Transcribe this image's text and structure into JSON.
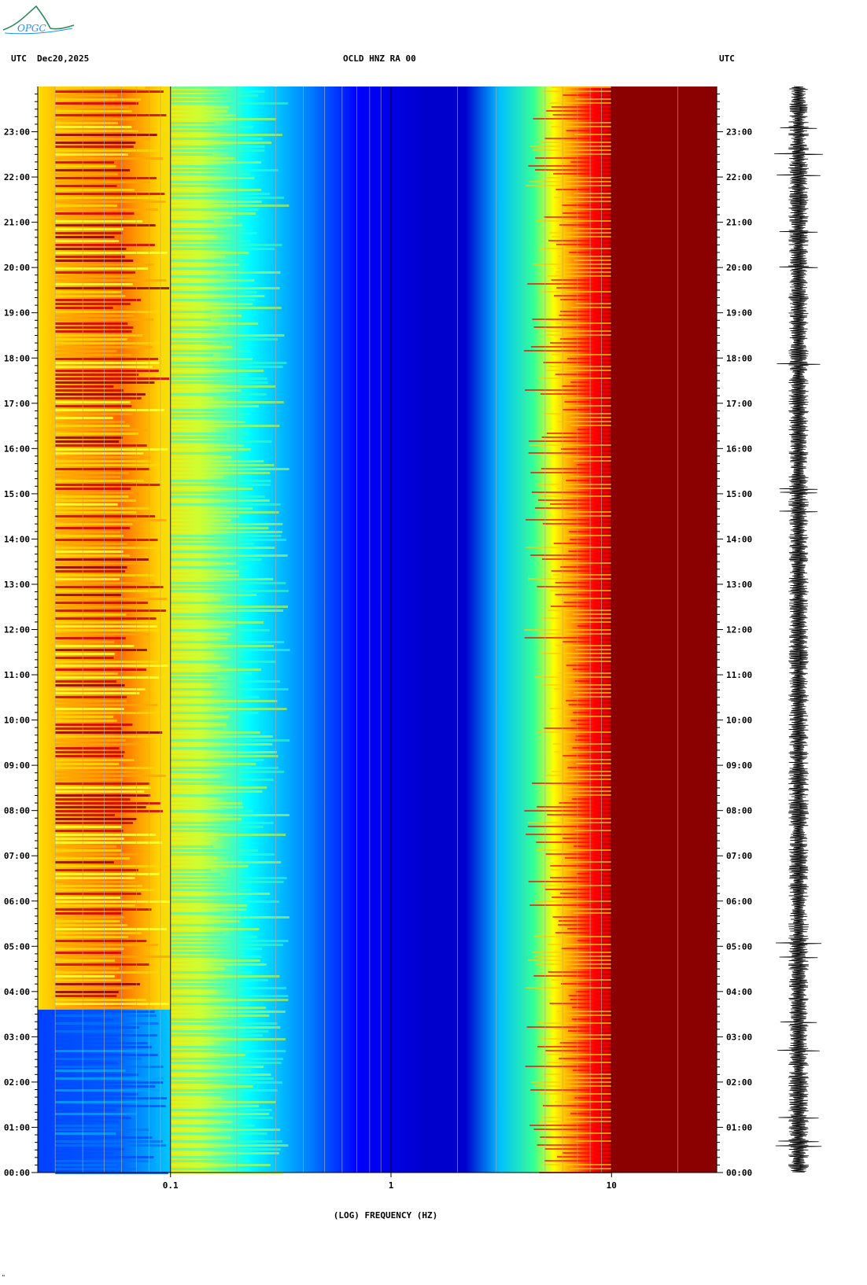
{
  "header": {
    "left_utc": "UTC",
    "date": "Dec20,2025",
    "station": "OCLD HNZ RA 00",
    "right_utc": "UTC"
  },
  "logo": {
    "text": "OPGC"
  },
  "footer_mark": "\"",
  "colors": {
    "dark_blue": "#00008b",
    "blue": "#0000ff",
    "cyan": "#00ffff",
    "yellow": "#ffff00",
    "orange": "#ffa500",
    "red": "#ff0000",
    "dark_red": "#8b0000",
    "logo_green": "#2e8b57",
    "logo_blue": "#1e90ff"
  },
  "chart_data": {
    "type": "heatmap",
    "title": "OCLD HNZ RA 00",
    "xlabel": "(LOG) FREQUENCY (HZ)",
    "ylabel": "UTC",
    "x_scale": "log",
    "xlim": [
      0.025,
      30
    ],
    "x_ticks": [
      {
        "value": 0.1,
        "label": "0.1"
      },
      {
        "value": 1,
        "label": "1"
      },
      {
        "value": 10,
        "label": "10"
      }
    ],
    "ylim_hours": [
      0,
      24
    ],
    "y_ticks": [
      "00:00",
      "01:00",
      "02:00",
      "03:00",
      "04:00",
      "05:00",
      "06:00",
      "07:00",
      "08:00",
      "09:00",
      "10:00",
      "11:00",
      "12:00",
      "13:00",
      "14:00",
      "15:00",
      "16:00",
      "17:00",
      "18:00",
      "19:00",
      "20:00",
      "21:00",
      "22:00",
      "23:00"
    ],
    "colormap": [
      "#00008b",
      "#0000ff",
      "#00ffff",
      "#ffff00",
      "#ffa500",
      "#ff0000",
      "#8b0000"
    ],
    "summary": {
      "low_freq_band_hz": [
        0.03,
        0.1
      ],
      "low_freq_band_high_power_hours": [
        3.6,
        24
      ],
      "low_power_min_hz": [
        0.6,
        2
      ],
      "rising_power_above_hz": 2,
      "saturated_above_hz": 10
    },
    "seismogram": {
      "position": "right",
      "description_visible": false
    }
  }
}
